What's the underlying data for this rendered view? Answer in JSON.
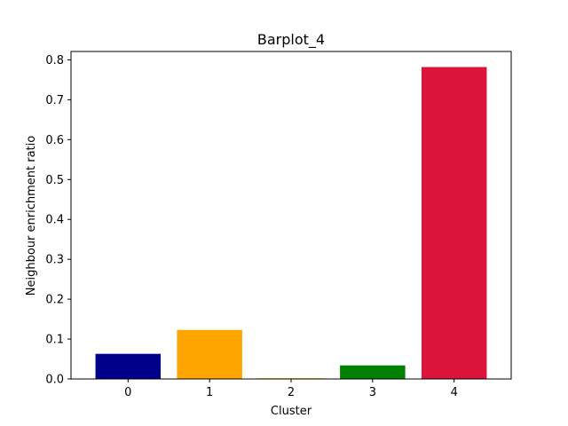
{
  "chart_data": {
    "type": "bar",
    "title": "Barplot_4",
    "xlabel": "Cluster",
    "ylabel": "Neighbour enrichment ratio",
    "categories": [
      "0",
      "1",
      "2",
      "3",
      "4"
    ],
    "values": [
      0.063,
      0.123,
      0.002,
      0.034,
      0.782
    ],
    "colors": [
      "#00008b",
      "#ffa500",
      "#ffd700",
      "#008000",
      "#dc143c"
    ],
    "ylim": [
      0,
      0.821
    ],
    "yticks": [
      0.0,
      0.1,
      0.2,
      0.3,
      0.4,
      0.5,
      0.6,
      0.7,
      0.8
    ],
    "ytick_labels": [
      "0.0",
      "0.1",
      "0.2",
      "0.3",
      "0.4",
      "0.5",
      "0.6",
      "0.7",
      "0.8"
    ],
    "grid": false,
    "legend": "none"
  }
}
